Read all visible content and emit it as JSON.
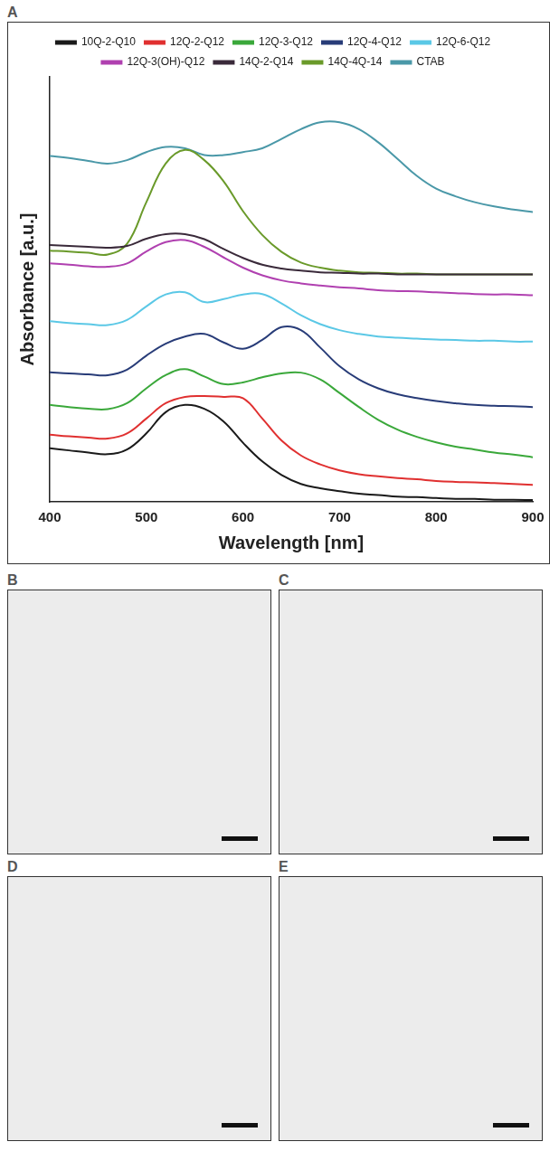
{
  "chart_data": {
    "type": "line",
    "x_label": "Wavelength [nm]",
    "y_label": "Absorbance [a.u.]",
    "x": [
      400,
      420,
      440,
      460,
      480,
      500,
      520,
      540,
      560,
      580,
      600,
      620,
      640,
      660,
      680,
      700,
      720,
      740,
      760,
      780,
      800,
      820,
      840,
      860,
      880,
      900
    ],
    "xlim": [
      400,
      900
    ],
    "xticks": [
      400,
      500,
      600,
      700,
      800,
      900
    ],
    "ylim": [
      0,
      10
    ],
    "tick_labels": "x",
    "grid": false,
    "legend": "top",
    "series": [
      {
        "name": "10Q-2-Q10",
        "color": "#1a1a1a",
        "values": [
          1.26,
          1.21,
          1.16,
          1.12,
          1.23,
          1.61,
          2.11,
          2.28,
          2.19,
          1.89,
          1.39,
          0.95,
          0.63,
          0.42,
          0.32,
          0.25,
          0.19,
          0.16,
          0.12,
          0.11,
          0.09,
          0.07,
          0.07,
          0.05,
          0.05,
          0.04
        ]
      },
      {
        "name": "12Q-2-Q12",
        "color": "#e03030",
        "values": [
          1.58,
          1.54,
          1.51,
          1.49,
          1.61,
          1.96,
          2.32,
          2.47,
          2.49,
          2.47,
          2.44,
          1.96,
          1.44,
          1.09,
          0.88,
          0.74,
          0.65,
          0.6,
          0.56,
          0.53,
          0.49,
          0.47,
          0.46,
          0.44,
          0.42,
          0.4
        ]
      },
      {
        "name": "12Q-3-Q12",
        "color": "#3aa83a",
        "values": [
          2.28,
          2.23,
          2.19,
          2.18,
          2.32,
          2.67,
          2.98,
          3.12,
          2.95,
          2.77,
          2.81,
          2.93,
          3.02,
          3.04,
          2.88,
          2.56,
          2.23,
          1.93,
          1.7,
          1.53,
          1.4,
          1.3,
          1.23,
          1.16,
          1.11,
          1.05
        ]
      },
      {
        "name": "12Q-4-Q12",
        "color": "#283c78",
        "values": [
          3.05,
          3.02,
          3.0,
          2.98,
          3.11,
          3.44,
          3.72,
          3.89,
          3.95,
          3.75,
          3.6,
          3.81,
          4.11,
          4.04,
          3.63,
          3.19,
          2.88,
          2.67,
          2.53,
          2.44,
          2.37,
          2.32,
          2.28,
          2.26,
          2.25,
          2.23
        ]
      },
      {
        "name": "12Q-6-Q12",
        "color": "#5bc8e6",
        "values": [
          4.25,
          4.21,
          4.18,
          4.16,
          4.28,
          4.6,
          4.88,
          4.93,
          4.7,
          4.77,
          4.88,
          4.89,
          4.67,
          4.39,
          4.18,
          4.04,
          3.95,
          3.89,
          3.86,
          3.84,
          3.82,
          3.81,
          3.79,
          3.79,
          3.77,
          3.77
        ]
      },
      {
        "name": "12Q-3(OH)-Q12",
        "color": "#b040b0",
        "values": [
          5.61,
          5.58,
          5.54,
          5.53,
          5.61,
          5.89,
          6.11,
          6.16,
          6.0,
          5.75,
          5.51,
          5.33,
          5.21,
          5.14,
          5.09,
          5.05,
          5.02,
          4.98,
          4.96,
          4.95,
          4.93,
          4.91,
          4.89,
          4.88,
          4.88,
          4.86
        ]
      },
      {
        "name": "14Q-2-Q14",
        "color": "#3a2a3a",
        "values": [
          6.04,
          6.02,
          6.0,
          5.98,
          6.02,
          6.19,
          6.3,
          6.3,
          6.18,
          5.95,
          5.74,
          5.58,
          5.49,
          5.44,
          5.4,
          5.39,
          5.37,
          5.37,
          5.35,
          5.35,
          5.35,
          5.35,
          5.35,
          5.35,
          5.35,
          5.35
        ]
      },
      {
        "name": "14Q-4Q-14",
        "color": "#6a9a2a",
        "values": [
          5.91,
          5.89,
          5.86,
          5.82,
          6.07,
          7.05,
          7.96,
          8.28,
          8.04,
          7.54,
          6.84,
          6.28,
          5.88,
          5.63,
          5.51,
          5.44,
          5.4,
          5.39,
          5.37,
          5.37,
          5.35,
          5.35,
          5.35,
          5.35,
          5.35,
          5.35
        ]
      },
      {
        "name": "CTAB",
        "color": "#4a98a8",
        "values": [
          8.14,
          8.09,
          8.02,
          7.96,
          8.04,
          8.23,
          8.35,
          8.32,
          8.16,
          8.16,
          8.23,
          8.32,
          8.54,
          8.77,
          8.93,
          8.93,
          8.77,
          8.46,
          8.07,
          7.67,
          7.37,
          7.19,
          7.05,
          6.95,
          6.88,
          6.82
        ]
      }
    ]
  },
  "panel_labels": [
    "A",
    "B",
    "C",
    "D",
    "E"
  ]
}
